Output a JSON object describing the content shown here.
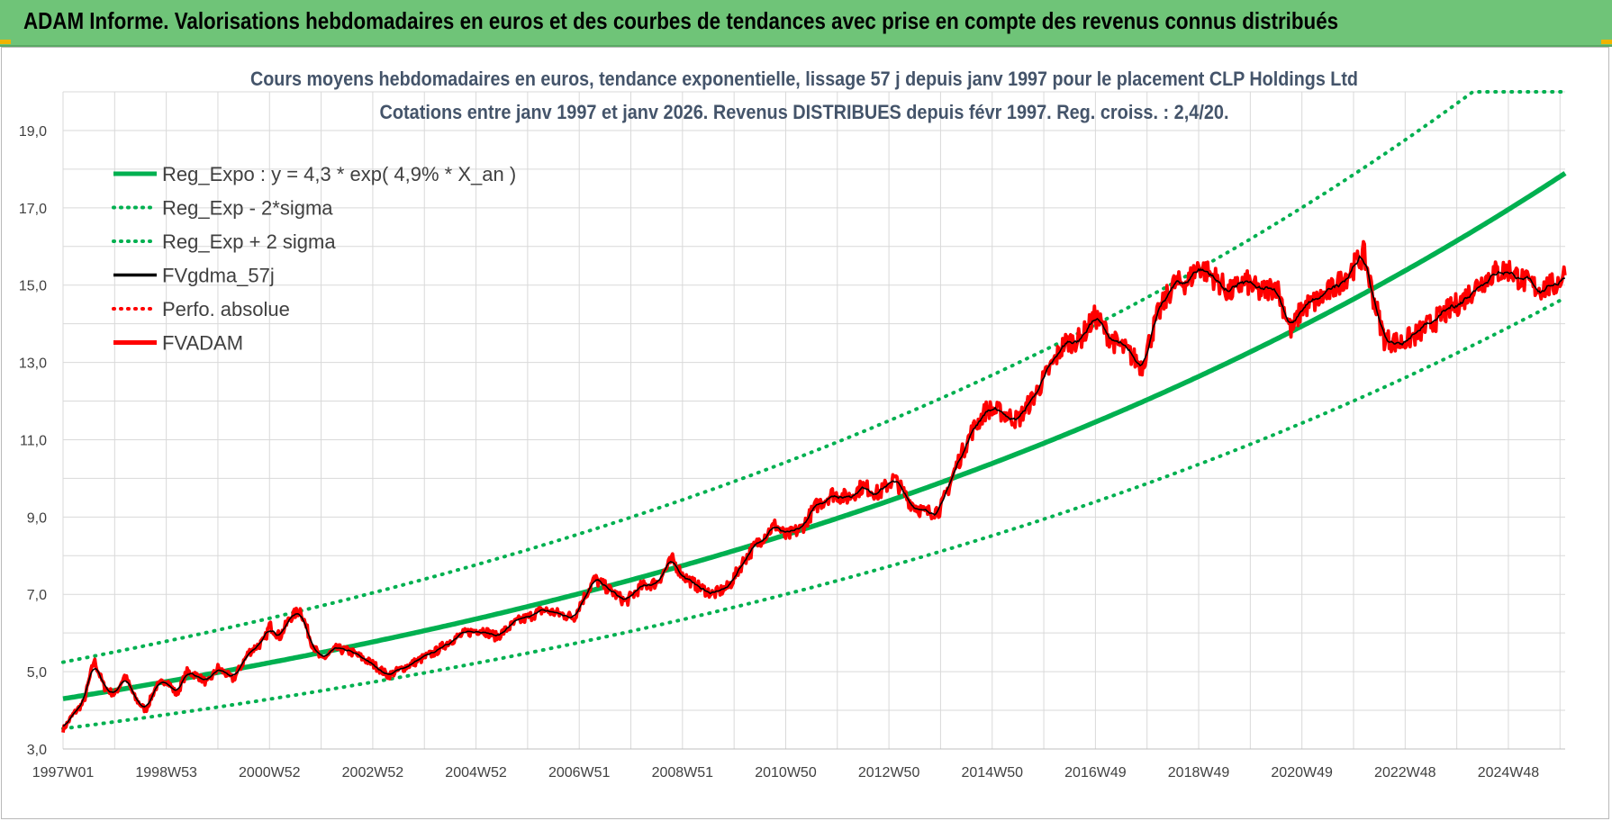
{
  "banner": {
    "title": "ADAM Informe. Valorisations hebdomadaires en euros et des courbes de tendances avec prise en compte des revenus connus distribués"
  },
  "colors": {
    "banner": "#6fc478",
    "trend": "#00b050",
    "smooth": "#000000",
    "price": "#ff0000",
    "accent": "#f0b400"
  },
  "chart_data": {
    "type": "line",
    "title": "Cours moyens hebdomadaires en euros, tendance exponentielle, lissage 57 j depuis janv 1997 pour le placement CLP Holdings Ltd",
    "subtitle": "Cotations entre janv 1997 et janv 2026. Revenus DISTRIBUES depuis févr 1997. Reg. croiss. : 2,4/20.",
    "xlabel": "",
    "ylabel": "",
    "ylim": [
      3.0,
      20.0
    ],
    "xlim": [
      1997.0,
      2026.1
    ],
    "y_ticks": [
      "3,0",
      "5,0",
      "7,0",
      "9,0",
      "11,0",
      "13,0",
      "15,0",
      "17,0",
      "19,0"
    ],
    "x_ticks": [
      {
        "label": "1997W01",
        "x": 1997.0
      },
      {
        "label": "1998W53",
        "x": 1999.0
      },
      {
        "label": "2000W52",
        "x": 2001.0
      },
      {
        "label": "2002W52",
        "x": 2003.0
      },
      {
        "label": "2004W52",
        "x": 2005.0
      },
      {
        "label": "2006W51",
        "x": 2007.0
      },
      {
        "label": "2008W51",
        "x": 2009.0
      },
      {
        "label": "2010W50",
        "x": 2011.0
      },
      {
        "label": "2012W50",
        "x": 2013.0
      },
      {
        "label": "2014W50",
        "x": 2015.0
      },
      {
        "label": "2016W49",
        "x": 2017.0
      },
      {
        "label": "2018W49",
        "x": 2019.0
      },
      {
        "label": "2020W49",
        "x": 2021.0
      },
      {
        "label": "2022W48",
        "x": 2023.0
      },
      {
        "label": "2024W48",
        "x": 2025.0
      }
    ],
    "grid": true,
    "legend_position": "top-left",
    "series": [
      {
        "name": "Reg_Expo : y = 4,3 * exp( 4,9% *  X_an )",
        "style": "solid-thick",
        "color": "#00b050",
        "kind": "regression",
        "a": 4.3,
        "rate": 0.049,
        "x0": 1997.0
      },
      {
        "name": "Reg_Exp - 2*sigma",
        "style": "dotted",
        "color": "#00b050",
        "kind": "band",
        "factor": 0.82
      },
      {
        "name": "Reg_Exp + 2 sigma",
        "style": "dotted",
        "color": "#00b050",
        "kind": "band",
        "factor": 1.22,
        "cap": 20.0
      },
      {
        "name": "FVgdma_57j",
        "style": "solid",
        "color": "#000000",
        "kind": "smooth"
      },
      {
        "name": "Perfo. absolue",
        "style": "dotted",
        "color": "#ff0000",
        "kind": "legend-only"
      },
      {
        "name": "FVADAM",
        "style": "solid-thick",
        "color": "#ff0000",
        "kind": "price",
        "x": [
          1997.0,
          1997.2,
          1997.4,
          1997.6,
          1997.8,
          1998.0,
          1998.2,
          1998.4,
          1998.6,
          1998.8,
          1999.0,
          1999.2,
          1999.4,
          1999.6,
          1999.8,
          2000.0,
          2000.3,
          2000.6,
          2000.9,
          2001.0,
          2001.2,
          2001.4,
          2001.6,
          2001.8,
          2002.0,
          2002.3,
          2002.6,
          2003.0,
          2003.3,
          2003.6,
          2003.9,
          2004.2,
          2004.5,
          2004.8,
          2005.1,
          2005.4,
          2005.8,
          2006.0,
          2006.3,
          2006.6,
          2006.9,
          2007.0,
          2007.3,
          2007.6,
          2007.9,
          2008.2,
          2008.5,
          2008.8,
          2009.0,
          2009.3,
          2009.6,
          2009.9,
          2010.2,
          2010.5,
          2010.8,
          2011.0,
          2011.3,
          2011.6,
          2011.9,
          2012.2,
          2012.5,
          2012.8,
          2013.1,
          2013.4,
          2013.7,
          2014.0,
          2014.3,
          2014.6,
          2014.9,
          2015.2,
          2015.5,
          2015.8,
          2016.1,
          2016.4,
          2016.7,
          2017.0,
          2017.3,
          2017.6,
          2017.9,
          2018.2,
          2018.5,
          2018.8,
          2019.0,
          2019.3,
          2019.6,
          2019.9,
          2020.2,
          2020.5,
          2020.8,
          2021.0,
          2021.3,
          2021.6,
          2021.9,
          2022.2,
          2022.4,
          2022.6,
          2022.9,
          2023.2,
          2023.5,
          2023.8,
          2024.1,
          2024.4,
          2024.7,
          2025.0,
          2025.3,
          2025.6,
          2025.9,
          2026.1
        ],
        "values": [
          3.5,
          3.9,
          4.2,
          5.3,
          4.6,
          4.4,
          4.9,
          4.3,
          4.0,
          4.6,
          4.8,
          4.4,
          5.0,
          4.9,
          4.7,
          5.1,
          4.8,
          5.5,
          5.8,
          6.2,
          5.9,
          6.4,
          6.6,
          5.8,
          5.3,
          5.6,
          5.5,
          5.2,
          4.9,
          5.1,
          5.3,
          5.5,
          5.8,
          6.0,
          6.1,
          5.9,
          6.3,
          6.4,
          6.6,
          6.5,
          6.4,
          6.7,
          7.4,
          7.1,
          6.8,
          7.2,
          7.3,
          7.9,
          7.5,
          7.2,
          7.0,
          7.2,
          7.9,
          8.4,
          8.8,
          8.5,
          8.7,
          9.3,
          9.6,
          9.5,
          9.8,
          9.6,
          10.0,
          9.4,
          9.1,
          9.2,
          10.3,
          11.2,
          11.8,
          11.7,
          11.5,
          12.1,
          12.8,
          13.5,
          13.6,
          14.2,
          13.6,
          13.3,
          12.9,
          14.2,
          15.0,
          15.1,
          15.5,
          15.2,
          14.8,
          15.1,
          14.8,
          15.0,
          13.8,
          14.4,
          14.6,
          14.9,
          15.3,
          15.8,
          14.6,
          13.6,
          13.5,
          13.7,
          14.0,
          14.3,
          14.6,
          15.0,
          15.3,
          15.4,
          15.1,
          14.9,
          15.0,
          15.3
        ]
      }
    ]
  }
}
